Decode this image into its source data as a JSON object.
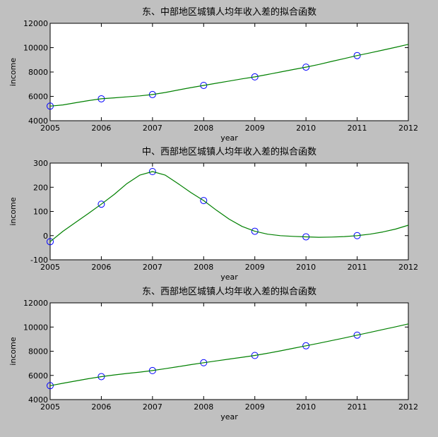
{
  "colors": {
    "background": "#c0c0c0",
    "axes_background": "#ffffff",
    "fit_line": "#008000",
    "markers": "#0000ff"
  },
  "chart_data": [
    {
      "type": "line",
      "title": "东、中部地区城镇人均年收入差的拟合函数",
      "xlabel": "year",
      "ylabel": "income",
      "xlim": [
        2005,
        2012
      ],
      "ylim": [
        4000,
        12000
      ],
      "xticks": [
        2005,
        2006,
        2007,
        2008,
        2009,
        2010,
        2011,
        2012
      ],
      "yticks": [
        4000,
        6000,
        8000,
        10000,
        12000
      ],
      "grid": false,
      "series": [
        {
          "style": "markers",
          "marker": "circle",
          "x": [
            2005,
            2006,
            2007,
            2008,
            2009,
            2010,
            2011
          ],
          "y": [
            5200,
            5800,
            6150,
            6900,
            7600,
            8400,
            9350
          ]
        },
        {
          "style": "line",
          "x": [
            2005,
            2005.25,
            2005.5,
            2005.75,
            2006,
            2006.25,
            2006.5,
            2006.75,
            2007,
            2007.25,
            2007.5,
            2007.75,
            2008,
            2008.25,
            2008.5,
            2008.75,
            2009,
            2009.25,
            2009.5,
            2009.75,
            2010,
            2010.25,
            2010.5,
            2010.75,
            2011,
            2011.25,
            2011.5,
            2011.75,
            2012
          ],
          "y": [
            5200,
            5300,
            5480,
            5650,
            5800,
            5880,
            5960,
            6040,
            6150,
            6320,
            6520,
            6720,
            6900,
            7080,
            7260,
            7440,
            7600,
            7800,
            8000,
            8200,
            8400,
            8620,
            8870,
            9110,
            9350,
            9570,
            9800,
            10030,
            10270
          ]
        }
      ]
    },
    {
      "type": "line",
      "title": "中、西部地区城镇人均年收入差的拟合函数",
      "xlabel": "year",
      "ylabel": "income",
      "xlim": [
        2005,
        2012
      ],
      "ylim": [
        -100,
        300
      ],
      "xticks": [
        2005,
        2006,
        2007,
        2008,
        2009,
        2010,
        2011,
        2012
      ],
      "yticks": [
        -100,
        0,
        100,
        200,
        300
      ],
      "grid": false,
      "series": [
        {
          "style": "markers",
          "marker": "circle",
          "x": [
            2005,
            2006,
            2007,
            2008,
            2009,
            2010,
            2011
          ],
          "y": [
            -25,
            130,
            265,
            145,
            18,
            -5,
            0
          ]
        },
        {
          "style": "line",
          "x": [
            2005,
            2005.25,
            2005.5,
            2005.75,
            2006,
            2006.25,
            2006.5,
            2006.75,
            2007,
            2007.25,
            2007.5,
            2007.75,
            2008,
            2008.25,
            2008.5,
            2008.75,
            2009,
            2009.25,
            2009.5,
            2009.75,
            2010,
            2010.25,
            2010.5,
            2010.75,
            2011,
            2011.25,
            2011.5,
            2011.75,
            2012
          ],
          "y": [
            -25,
            18,
            55,
            92,
            130,
            170,
            215,
            250,
            265,
            250,
            215,
            178,
            145,
            105,
            68,
            38,
            18,
            6,
            0,
            -3,
            -5,
            -7,
            -6,
            -4,
            0,
            6,
            15,
            27,
            43
          ]
        }
      ]
    },
    {
      "type": "line",
      "title": "东、西部地区城镇人均年收入差的拟合函数",
      "xlabel": "year",
      "ylabel": "income",
      "xlim": [
        2005,
        2012
      ],
      "ylim": [
        4000,
        12000
      ],
      "xticks": [
        2005,
        2006,
        2007,
        2008,
        2009,
        2010,
        2011,
        2012
      ],
      "yticks": [
        4000,
        6000,
        8000,
        10000,
        12000
      ],
      "grid": false,
      "series": [
        {
          "style": "markers",
          "marker": "circle",
          "x": [
            2005,
            2006,
            2007,
            2008,
            2009,
            2010,
            2011
          ],
          "y": [
            5150,
            5900,
            6400,
            7050,
            7650,
            8450,
            9330
          ]
        },
        {
          "style": "line",
          "x": [
            2005,
            2005.25,
            2005.5,
            2005.75,
            2006,
            2006.25,
            2006.5,
            2006.75,
            2007,
            2007.25,
            2007.5,
            2007.75,
            2008,
            2008.25,
            2008.5,
            2008.75,
            2009,
            2009.25,
            2009.5,
            2009.75,
            2010,
            2010.25,
            2010.5,
            2010.75,
            2011,
            2011.25,
            2011.5,
            2011.75,
            2012
          ],
          "y": [
            5150,
            5350,
            5540,
            5730,
            5900,
            6040,
            6160,
            6270,
            6400,
            6560,
            6720,
            6890,
            7050,
            7200,
            7350,
            7500,
            7650,
            7830,
            8030,
            8240,
            8450,
            8660,
            8880,
            9100,
            9330,
            9560,
            9790,
            10020,
            10260
          ]
        }
      ]
    }
  ]
}
